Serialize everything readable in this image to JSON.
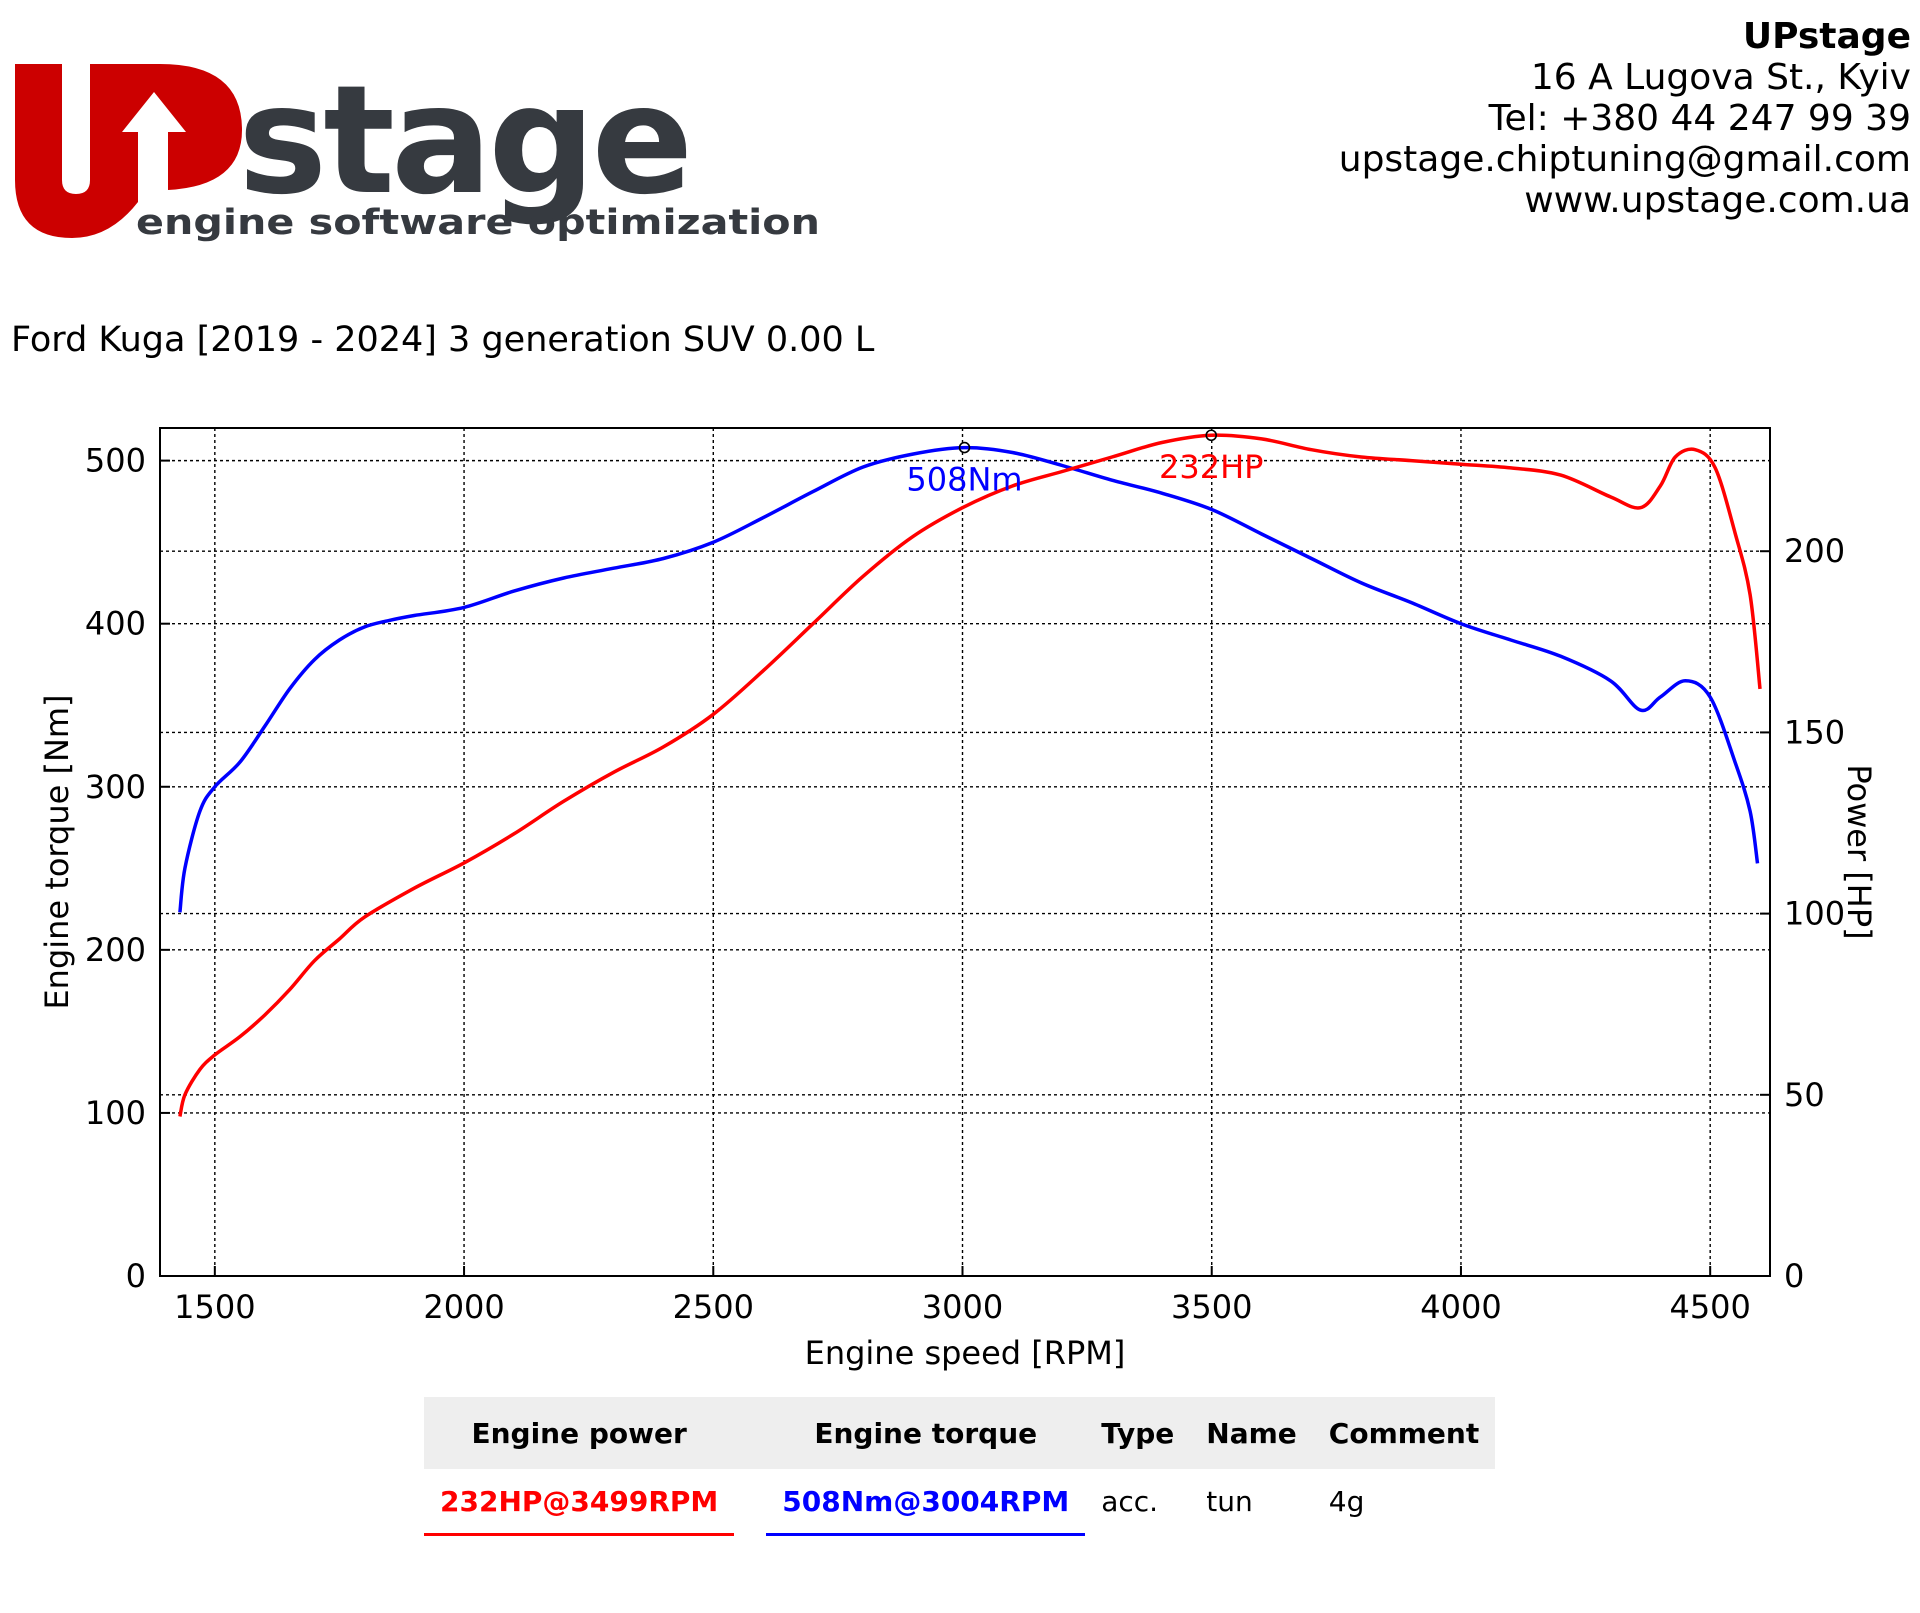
{
  "logo": {
    "text_up": "UP",
    "text_stage": "stage",
    "tagline": "engine software optimization",
    "colors": {
      "red": "#cc0000",
      "dark": "#363a40"
    }
  },
  "company": {
    "name": "UPstage",
    "address": "16 A Lugova St., Kyiv",
    "phone": "Tel: +380 44 247 99 39",
    "email": "upstage.chiptuning@gmail.com",
    "website": "www.upstage.com.ua"
  },
  "vehicle": "Ford Kuga [2019 - 2024] 3 generation SUV 0.00 L",
  "chart_data": {
    "type": "line",
    "xlabel": "Engine speed [RPM]",
    "ylabel_left": "Engine torque [Nm]",
    "ylabel_right": "Power [HP]",
    "xlim": [
      1390,
      4620
    ],
    "ylim_left": [
      0,
      520
    ],
    "ylim_right": [
      0,
      234
    ],
    "xticks": [
      1500,
      2000,
      2500,
      3000,
      3500,
      4000,
      4500
    ],
    "yticks_left": [
      0,
      100,
      200,
      300,
      400,
      500
    ],
    "yticks_right": [
      0,
      50,
      100,
      150,
      200
    ],
    "grid": true,
    "series": [
      {
        "name": "Engine torque",
        "axis": "left",
        "color": "#0000ff",
        "x": [
          1430,
          1440,
          1470,
          1500,
          1550,
          1600,
          1650,
          1700,
          1750,
          1800,
          1850,
          1900,
          2000,
          2100,
          2200,
          2300,
          2400,
          2500,
          2600,
          2700,
          2800,
          2900,
          3004,
          3100,
          3200,
          3300,
          3400,
          3500,
          3600,
          3700,
          3800,
          3900,
          4000,
          4100,
          4200,
          4300,
          4360,
          4400,
          4450,
          4500,
          4550,
          4580,
          4595
        ],
        "y": [
          223,
          250,
          285,
          300,
          315,
          337,
          360,
          378,
          390,
          398,
          402,
          405,
          410,
          420,
          428,
          434,
          440,
          450,
          465,
          481,
          496,
          504,
          508,
          505,
          497,
          488,
          480,
          470,
          455,
          440,
          425,
          413,
          400,
          390,
          380,
          365,
          347,
          355,
          365,
          355,
          315,
          285,
          253
        ]
      },
      {
        "name": "Engine power",
        "axis": "right",
        "color": "#ff0000",
        "x": [
          1430,
          1440,
          1470,
          1500,
          1550,
          1600,
          1650,
          1700,
          1750,
          1800,
          1900,
          2000,
          2100,
          2200,
          2300,
          2400,
          2500,
          2600,
          2700,
          2800,
          2900,
          3000,
          3100,
          3200,
          3300,
          3400,
          3499,
          3600,
          3700,
          3800,
          3900,
          4000,
          4100,
          4200,
          4300,
          4360,
          4400,
          4430,
          4470,
          4510,
          4550,
          4580,
          4600
        ],
        "y": [
          44,
          50,
          57,
          61,
          66,
          72,
          79,
          87,
          93,
          99,
          107,
          114,
          122,
          131,
          139,
          146,
          155,
          167,
          180,
          193,
          204,
          212,
          218,
          222,
          226,
          230,
          232,
          231,
          228,
          226,
          225,
          224,
          223,
          221,
          215,
          212,
          218,
          226,
          228,
          223,
          205,
          188,
          162
        ]
      }
    ],
    "annotations": [
      {
        "series": "Engine torque",
        "x": 3004,
        "y": 508,
        "label": "508Nm"
      },
      {
        "series": "Engine power",
        "x": 3499,
        "y": 232,
        "label": "232HP"
      }
    ]
  },
  "summary": {
    "headers": [
      "Engine power",
      "Engine torque",
      "Type",
      "Name",
      "Comment"
    ],
    "row": {
      "power": "232HP@3499RPM",
      "torque": "508Nm@3004RPM",
      "type": "acc.",
      "name": "tun",
      "comment": "4g"
    }
  }
}
